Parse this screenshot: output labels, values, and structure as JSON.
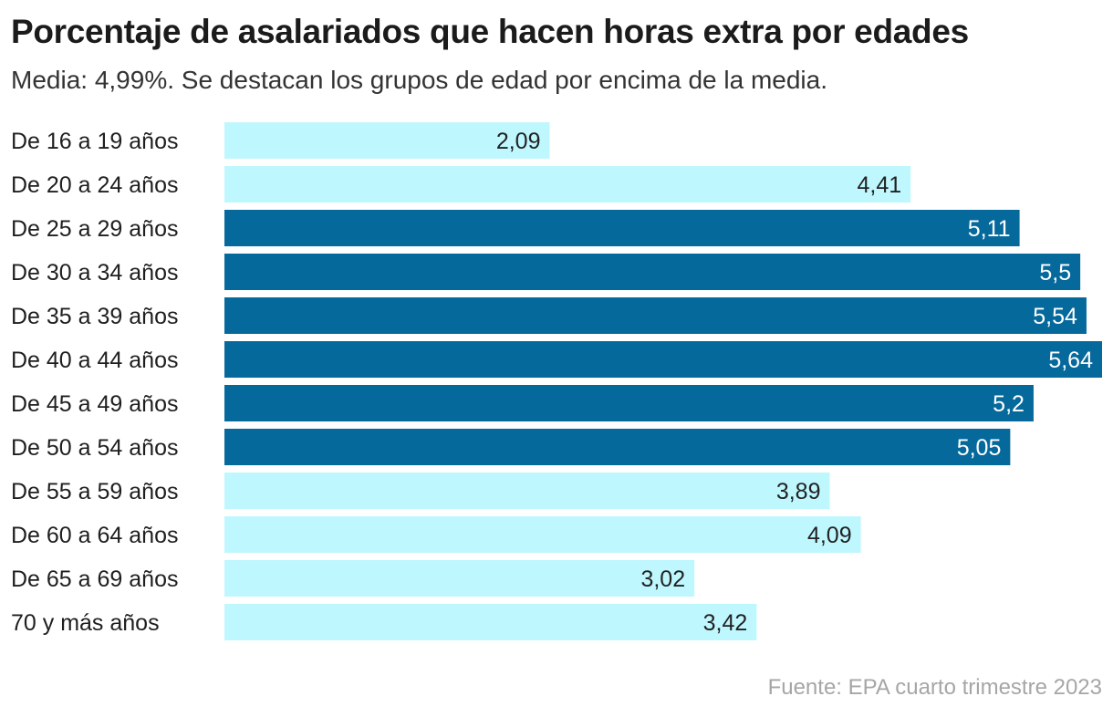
{
  "title": "Porcentaje de asalariados que hacen horas extra por edades",
  "subtitle": "Media: 4,99%. Se destacan los grupos de edad por encima de la media.",
  "source": "Fuente: EPA cuarto trimestre 2023",
  "colors": {
    "above_mean": "#06699b",
    "below_mean": "#bff7ff",
    "label_on_dark": "#ffffff",
    "label_on_light": "#222222"
  },
  "chart_data": {
    "type": "bar",
    "orientation": "horizontal",
    "mean": 4.99,
    "categories": [
      "De 16 a 19 años",
      "De 20 a 24 años",
      "De 25 a 29 años",
      "De 30 a 34 años",
      "De 35 a 39 años",
      "De 40 a 44 años",
      "De 45 a 49 años",
      "De 50 a 54 años",
      "De 55 a 59 años",
      "De 60 a 64 años",
      "De 65 a 69 años",
      "70 y más años"
    ],
    "values": [
      2.09,
      4.41,
      5.11,
      5.5,
      5.54,
      5.64,
      5.2,
      5.05,
      3.89,
      4.09,
      3.02,
      3.42
    ],
    "value_labels": [
      "2,09",
      "4,41",
      "5,11",
      "5,5",
      "5,54",
      "5,64",
      "5,2",
      "5,05",
      "3,89",
      "4,09",
      "3,02",
      "3,42"
    ],
    "xlim": [
      0,
      5.64
    ],
    "grid": false,
    "legend": "none"
  }
}
